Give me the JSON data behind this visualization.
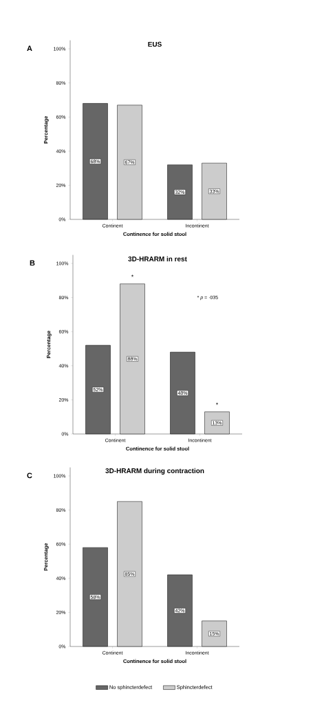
{
  "chart_data": [
    {
      "type": "bar",
      "title": "EUS",
      "xlabel": "Continence for solid stool",
      "ylabel": "Percentage",
      "categories": [
        "Continent",
        "Incontinent"
      ],
      "series": [
        {
          "color": "#666666",
          "values": [
            68,
            32
          ],
          "value_labels": [
            "68%",
            "32%"
          ]
        },
        {
          "color": "#cccccc",
          "values": [
            67,
            33
          ],
          "value_labels": [
            "67%",
            "33%"
          ]
        }
      ],
      "ylim": [
        0,
        105
      ],
      "yticks": [
        {
          "value": 0,
          "label": "0%"
        },
        {
          "value": 20,
          "label": "20%"
        },
        {
          "value": 40,
          "label": "40%"
        },
        {
          "value": 60,
          "label": "60%"
        },
        {
          "value": 80,
          "label": "80%"
        },
        {
          "value": 100,
          "label": "100%"
        }
      ],
      "annotations": [
        "A"
      ]
    },
    {
      "type": "bar",
      "title": "3D-HRARM in rest",
      "xlabel": "Continence for solid stool",
      "ylabel": "Percentage",
      "categories": [
        "Continent",
        "Incontinent"
      ],
      "series": [
        {
          "color": "#666666",
          "values": [
            52,
            48
          ],
          "value_labels": [
            "52%",
            "48%"
          ]
        },
        {
          "color": "#cccccc",
          "values": [
            88,
            13
          ],
          "value_labels": [
            "88%",
            "13%"
          ]
        }
      ],
      "ylim": [
        0,
        105
      ],
      "yticks": [
        {
          "value": 0,
          "label": "0%"
        },
        {
          "value": 20,
          "label": "20%"
        },
        {
          "value": 40,
          "label": "40%"
        },
        {
          "value": 60,
          "label": "60%"
        },
        {
          "value": 80,
          "label": "80%"
        },
        {
          "value": 100,
          "label": "100%"
        }
      ],
      "annotations": [
        "B",
        "* *p* = ·035",
        "*",
        "*"
      ]
    },
    {
      "type": "bar",
      "title": "3D-HRARM during contraction",
      "xlabel": "Continence for solid stool",
      "ylabel": "Percentage",
      "categories": [
        "Continent",
        "Incontinent"
      ],
      "series": [
        {
          "name": "No sphincterdefect",
          "color": "#666666",
          "values": [
            58,
            42
          ],
          "value_labels": [
            "58%",
            "42%"
          ]
        },
        {
          "name": "Sphincterdefect",
          "color": "#cccccc",
          "values": [
            85,
            15
          ],
          "value_labels": [
            "85%",
            "15%"
          ]
        }
      ],
      "ylim": [
        0,
        105
      ],
      "yticks": [
        {
          "value": 0,
          "label": "0%"
        },
        {
          "value": 20,
          "label": "20%"
        },
        {
          "value": 40,
          "label": "40%"
        },
        {
          "value": 60,
          "label": "60%"
        },
        {
          "value": 80,
          "label": "80%"
        },
        {
          "value": 100,
          "label": "100%"
        }
      ],
      "legend": "bottom",
      "annotations": [
        "C"
      ]
    }
  ]
}
